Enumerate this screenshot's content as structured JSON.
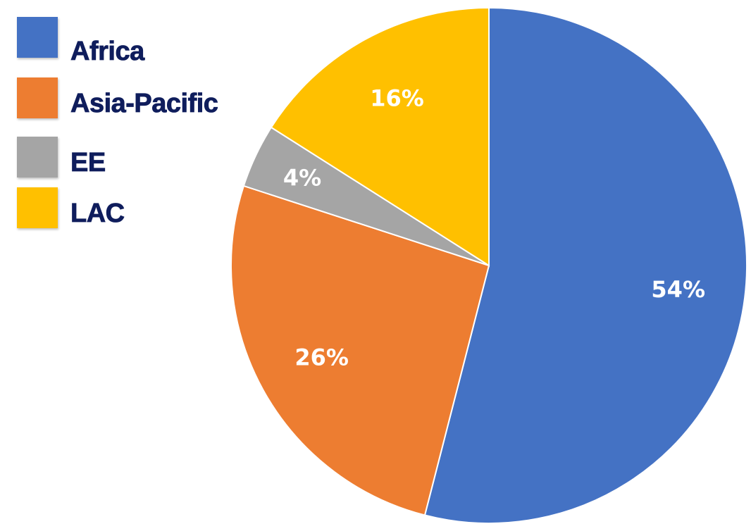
{
  "chart_data": {
    "type": "pie",
    "start_angle_deg": 0,
    "direction": "clockwise",
    "legend_position": "top-left",
    "slices": [
      {
        "name": "Africa",
        "value": 54,
        "label": "54%",
        "color": "#4472c4"
      },
      {
        "name": "Asia-Pacific",
        "value": 26,
        "label": "26%",
        "color": "#ed7d31"
      },
      {
        "name": "EE",
        "value": 4,
        "label": "4%",
        "color": "#a5a5a5"
      },
      {
        "name": "LAC",
        "value": 16,
        "label": "16%",
        "color": "#ffc000"
      }
    ]
  }
}
